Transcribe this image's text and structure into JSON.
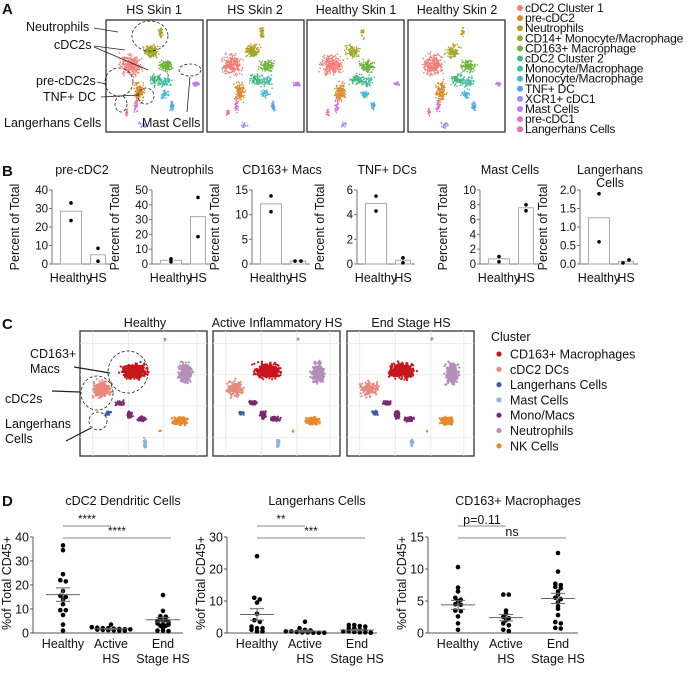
{
  "panel_labels": {
    "a": "A",
    "b": "B",
    "c": "C",
    "d": "D"
  },
  "panel_a": {
    "titles": [
      "HS Skin 1",
      "HS Skin 2",
      "Healthy Skin 1",
      "Healthy Skin 2"
    ],
    "annotations": {
      "neutrophils": "Neutrophils",
      "cdc2s": "cDC2s",
      "pre_cdc2s": "pre-cDC2s",
      "tnf_dc": "TNF+ DC",
      "langerhans": "Langerhans Cells",
      "mast": "Mast Cells"
    },
    "legend": [
      {
        "label": "cDC2 Cluster 1",
        "color": "#F0807A"
      },
      {
        "label": "pre-cDC2",
        "color": "#DA8A2A"
      },
      {
        "label": "Neutrophils",
        "color": "#B79E22"
      },
      {
        "label": "CD14+ Monocyte/Macrophage",
        "color": "#98AE2C"
      },
      {
        "label": "CD163+ Macrophage",
        "color": "#6DB33A"
      },
      {
        "label": "cDC2 Cluster 2",
        "color": "#45B87E"
      },
      {
        "label": "Monocyte/Macrophage",
        "color": "#48BCA8"
      },
      {
        "label": "Monocyte/Macrophage",
        "color": "#4AB6D2"
      },
      {
        "label": "TNF+ DC",
        "color": "#4FA4EC"
      },
      {
        "label": "XCR1+ cDC1",
        "color": "#8E94F2"
      },
      {
        "label": "Mast Cells",
        "color": "#C47AF0"
      },
      {
        "label": "pre-cDC1",
        "color": "#E66ED6"
      },
      {
        "label": "Langerhans Cells",
        "color": "#EE6AA6"
      }
    ]
  },
  "panel_c": {
    "titles": [
      "Healthy",
      "Active Inflammatory HS",
      "End Stage HS"
    ],
    "annotations": {
      "cd163_line1": "CD163+",
      "cd163_line2": "Macs",
      "cdc2s": "cDC2s",
      "langerhans_line1": "Langerhans",
      "langerhans_line2": "Cells"
    },
    "legend_title": "Cluster",
    "legend": [
      {
        "label": "CD163+ Macrophages",
        "color": "#C8161D"
      },
      {
        "label": "cDC2 DCs",
        "color": "#E8887C"
      },
      {
        "label": "Langerhans Cells",
        "color": "#3E5DA6"
      },
      {
        "label": "Mast Cells",
        "color": "#8DB3DE"
      },
      {
        "label": "Mono/Macs",
        "color": "#7A2B6F"
      },
      {
        "label": "Neutrophils",
        "color": "#B48FB8"
      },
      {
        "label": "NK Cells",
        "color": "#E8892A"
      }
    ]
  },
  "chart_data": [
    {
      "panel": "B",
      "type": "bar",
      "title": "pre-cDC2",
      "ylabel": "Percent of Total",
      "categories": [
        "Healthy",
        "HS"
      ],
      "values": [
        28.5,
        5
      ],
      "points": [
        [
          33,
          23.5
        ],
        [
          8.5,
          1.5
        ]
      ],
      "ylim": [
        0,
        40
      ],
      "yticks": [
        "0",
        "10",
        "20",
        "30",
        "40"
      ]
    },
    {
      "panel": "B",
      "type": "bar",
      "title": "Neutrophils",
      "ylabel": "Percent of Total",
      "categories": [
        "Healthy",
        "HS"
      ],
      "values": [
        2.5,
        32
      ],
      "points": [
        [
          1.5,
          3.5
        ],
        [
          45,
          18.5
        ]
      ],
      "ylim": [
        0,
        50
      ],
      "yticks": [
        "0",
        "10",
        "20",
        "30",
        "40",
        "50"
      ]
    },
    {
      "panel": "B",
      "type": "bar",
      "title": "CD163+ Macs",
      "ylabel": "Percent of Total",
      "categories": [
        "Healthy",
        "HS"
      ],
      "values": [
        12.2,
        0.6
      ],
      "points": [
        [
          13.8,
          10.6
        ],
        [
          0.6,
          0.6
        ]
      ],
      "ylim": [
        0,
        15
      ],
      "yticks": [
        "0",
        "5",
        "10",
        "15"
      ]
    },
    {
      "panel": "B",
      "type": "bar",
      "title": "TNF+ DCs",
      "ylabel": "Percent of Total",
      "categories": [
        "Healthy",
        "HS"
      ],
      "values": [
        4.9,
        0.3
      ],
      "points": [
        [
          5.5,
          4.3
        ],
        [
          0.1,
          0.5
        ]
      ],
      "ylim": [
        0,
        6
      ],
      "yticks": [
        "0",
        "2",
        "4",
        "6"
      ]
    },
    {
      "panel": "B",
      "type": "bar",
      "title": "Mast Cells",
      "ylabel": "Percent of Total",
      "categories": [
        "Healthy",
        "HS"
      ],
      "values": [
        0.7,
        7.6
      ],
      "points": [
        [
          1.0,
          0.3
        ],
        [
          8.0,
          7.2
        ]
      ],
      "ylim": [
        0,
        10
      ],
      "yticks": [
        "0",
        "2",
        "4",
        "6",
        "8",
        "10"
      ]
    },
    {
      "panel": "B",
      "type": "bar",
      "title": "Langerhans Cells",
      "title_lines": [
        "Langerhans",
        "Cells"
      ],
      "ylabel": "Percent of Total",
      "categories": [
        "Healthy",
        "HS"
      ],
      "values": [
        1.25,
        0.07
      ],
      "points": [
        [
          1.9,
          0.6
        ],
        [
          0.03,
          0.11
        ]
      ],
      "ylim": [
        0,
        2.0
      ],
      "yticks": [
        "0.0",
        "0.5",
        "1.0",
        "1.5",
        "2.0"
      ]
    },
    {
      "panel": "D",
      "type": "scatter",
      "title": "cDC2 Dendritic Cells",
      "ylabel": "%of Total CD45+",
      "categories": [
        [
          "Healthy"
        ],
        [
          "Active",
          "HS"
        ],
        [
          "End",
          "Stage HS"
        ]
      ],
      "ylim": [
        0,
        40
      ],
      "yticks": [
        "0",
        "10",
        "20",
        "30",
        "40"
      ],
      "series": [
        {
          "points": [
            36.5,
            34.5,
            24.5,
            22,
            21.5,
            17.5,
            15.5,
            15,
            14,
            12,
            9.5,
            9.5,
            7.5,
            3.5,
            1
          ],
          "mean": 16,
          "sem": 2.8
        },
        {
          "points": [
            3.5,
            2.4,
            2.2,
            2,
            2,
            1.8,
            1.7,
            1.6,
            1.5,
            1.4,
            1.3,
            1.2,
            1.1,
            1,
            0.9
          ],
          "mean": 1.7,
          "sem": 0.2
        },
        {
          "points": [
            15.8,
            9.2,
            7,
            6.8,
            6,
            5.5,
            5,
            5,
            4.5,
            4,
            3.5,
            3.5,
            3,
            3,
            2,
            1,
            1,
            0.8
          ],
          "mean": 5.5,
          "sem": 0.9
        }
      ],
      "comparisons": [
        {
          "from": 0,
          "to": 1,
          "label": "****"
        },
        {
          "from": 0,
          "to": 2,
          "label": "****"
        }
      ]
    },
    {
      "panel": "D",
      "type": "scatter",
      "title": "Langerhans Cells",
      "ylabel": "%of Total CD45+",
      "categories": [
        [
          "Healthy"
        ],
        [
          "Active",
          "HS"
        ],
        [
          "End",
          "Stage HS"
        ]
      ],
      "ylim": [
        0,
        30
      ],
      "yticks": [
        "0",
        "10",
        "20",
        "30"
      ],
      "series": [
        {
          "points": [
            24,
            11,
            10.5,
            9.5,
            6,
            4,
            3.5,
            2,
            1.5,
            1.5,
            1,
            0.5,
            0.5
          ],
          "mean": 5.8,
          "sem": 1.8
        },
        {
          "points": [
            3.5,
            1.5,
            1,
            0.8,
            0.5,
            0.5,
            0.3,
            0.2,
            0.2,
            0.1,
            0.1,
            0.1
          ],
          "mean": 0.6,
          "sem": 0.3
        },
        {
          "points": [
            2.5,
            2.5,
            2.2,
            2,
            1.5,
            1.5,
            1,
            0.8,
            0.5,
            0.5,
            0.3,
            0.2,
            0.2,
            0.1
          ],
          "mean": 0.9,
          "sem": 0.2
        }
      ],
      "comparisons": [
        {
          "from": 0,
          "to": 1,
          "label": "**"
        },
        {
          "from": 0,
          "to": 2,
          "label": "***"
        }
      ]
    },
    {
      "panel": "D",
      "type": "scatter",
      "title": "CD163+ Macrophages",
      "ylabel": "%of Total CD45+",
      "categories": [
        [
          "Healthy"
        ],
        [
          "Active",
          "HS"
        ],
        [
          "End",
          "Stage HS"
        ]
      ],
      "ylim": [
        0,
        15
      ],
      "yticks": [
        "0",
        "5",
        "10",
        "15"
      ],
      "series": [
        {
          "points": [
            10.3,
            7.1,
            6.5,
            5.5,
            5.2,
            5,
            4.5,
            4.4,
            3.5,
            3.4,
            2.6,
            1.5,
            0.5
          ],
          "mean": 4.4,
          "sem": 0.7
        },
        {
          "points": [
            6,
            6,
            3.5,
            3,
            2.5,
            2.3,
            2,
            1.5,
            1.2,
            0.5,
            0.3
          ],
          "mean": 2.4,
          "sem": 0.5
        },
        {
          "points": [
            12.5,
            9.6,
            7.7,
            7.5,
            7.2,
            7,
            6.5,
            6,
            5.5,
            5.3,
            4.8,
            4.2,
            3.8,
            2.8,
            1.7,
            1.5,
            0.8,
            0.7
          ],
          "mean": 5.4,
          "sem": 0.8
        }
      ],
      "comparisons": [
        {
          "from": 0,
          "to": 1,
          "label": "p=0.11"
        },
        {
          "from": 0,
          "to": 2,
          "label": "ns"
        }
      ]
    }
  ]
}
